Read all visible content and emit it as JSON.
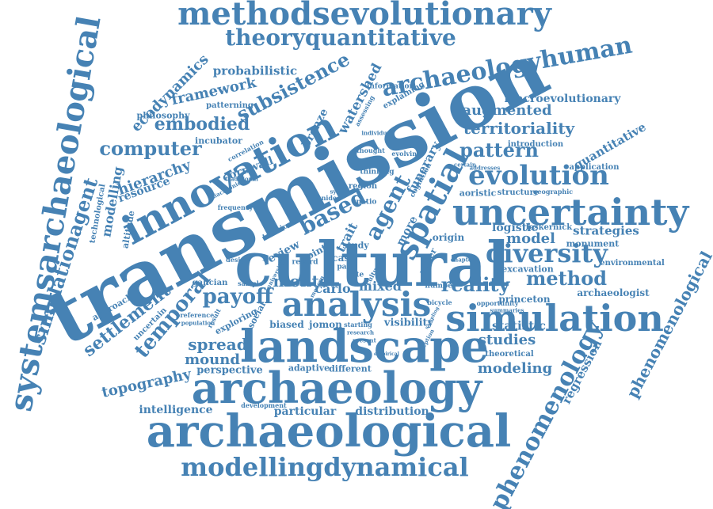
{
  "cloud": {
    "color": "#4682b4",
    "words": [
      "methodsevolutionary",
      "theoryquantitative",
      "archaeologyhuman",
      "transmission",
      "cultural",
      "innovation",
      "landscape",
      "archaeology",
      "archaeological",
      "modellingdynamical",
      "uncertainty",
      "simulation",
      "analysis",
      "spatial",
      "evolution",
      "diversity",
      "systemsarchaeological",
      "simulationagent",
      "phenomenology",
      "phenomenological",
      "computer",
      "embodied",
      "subsistence",
      "framework",
      "ecodynamics",
      "probabilistic",
      "settlement",
      "temporal",
      "payoff",
      "monte",
      "carlo",
      "mixed",
      "reality",
      "method",
      "model",
      "territoriality",
      "augmented",
      "pattern",
      "macroevolutionary",
      "agent",
      "based",
      "spread",
      "mound",
      "topography",
      "perspective",
      "intelligence",
      "particular",
      "distribution",
      "modeling",
      "studies",
      "regression",
      "quantitative",
      "strategies",
      "logistic",
      "statistic",
      "hierarchy",
      "modelling",
      "resource",
      "watershed",
      "bronze",
      "cornwall",
      "review",
      "trait",
      "funerary",
      "more",
      "origin",
      "visibility",
      "biased",
      "jomon",
      "adaptive",
      "different",
      "philosophy",
      "incubator",
      "patterning",
      "approach",
      "uncertain",
      "exploring",
      "social",
      "princeton",
      "archaeologist",
      "excavation",
      "monument",
      "environmental",
      "application",
      "introduction",
      "geographic",
      "structure",
      "aoristic",
      "leskernick",
      "explaining",
      "information",
      "thinking",
      "frequency",
      "technological",
      "altitude",
      "case",
      "point",
      "paper",
      "study",
      "rate",
      "galician",
      "sample",
      "design",
      "chapter",
      "number",
      "bicycle",
      "opportunity",
      "summaries",
      "theoretical",
      "development",
      "cognition",
      "region",
      "spatio",
      "evolving",
      "thought",
      "assessing",
      "individual",
      "correlation",
      "traditional",
      "diachronic",
      "system",
      "locational",
      "record",
      "past",
      "university",
      "modern",
      "starting",
      "preference",
      "population",
      "result",
      "certain",
      "addresses",
      "penide",
      "research",
      "present",
      "empirical",
      "perception",
      "sampling",
      "culture"
    ]
  }
}
